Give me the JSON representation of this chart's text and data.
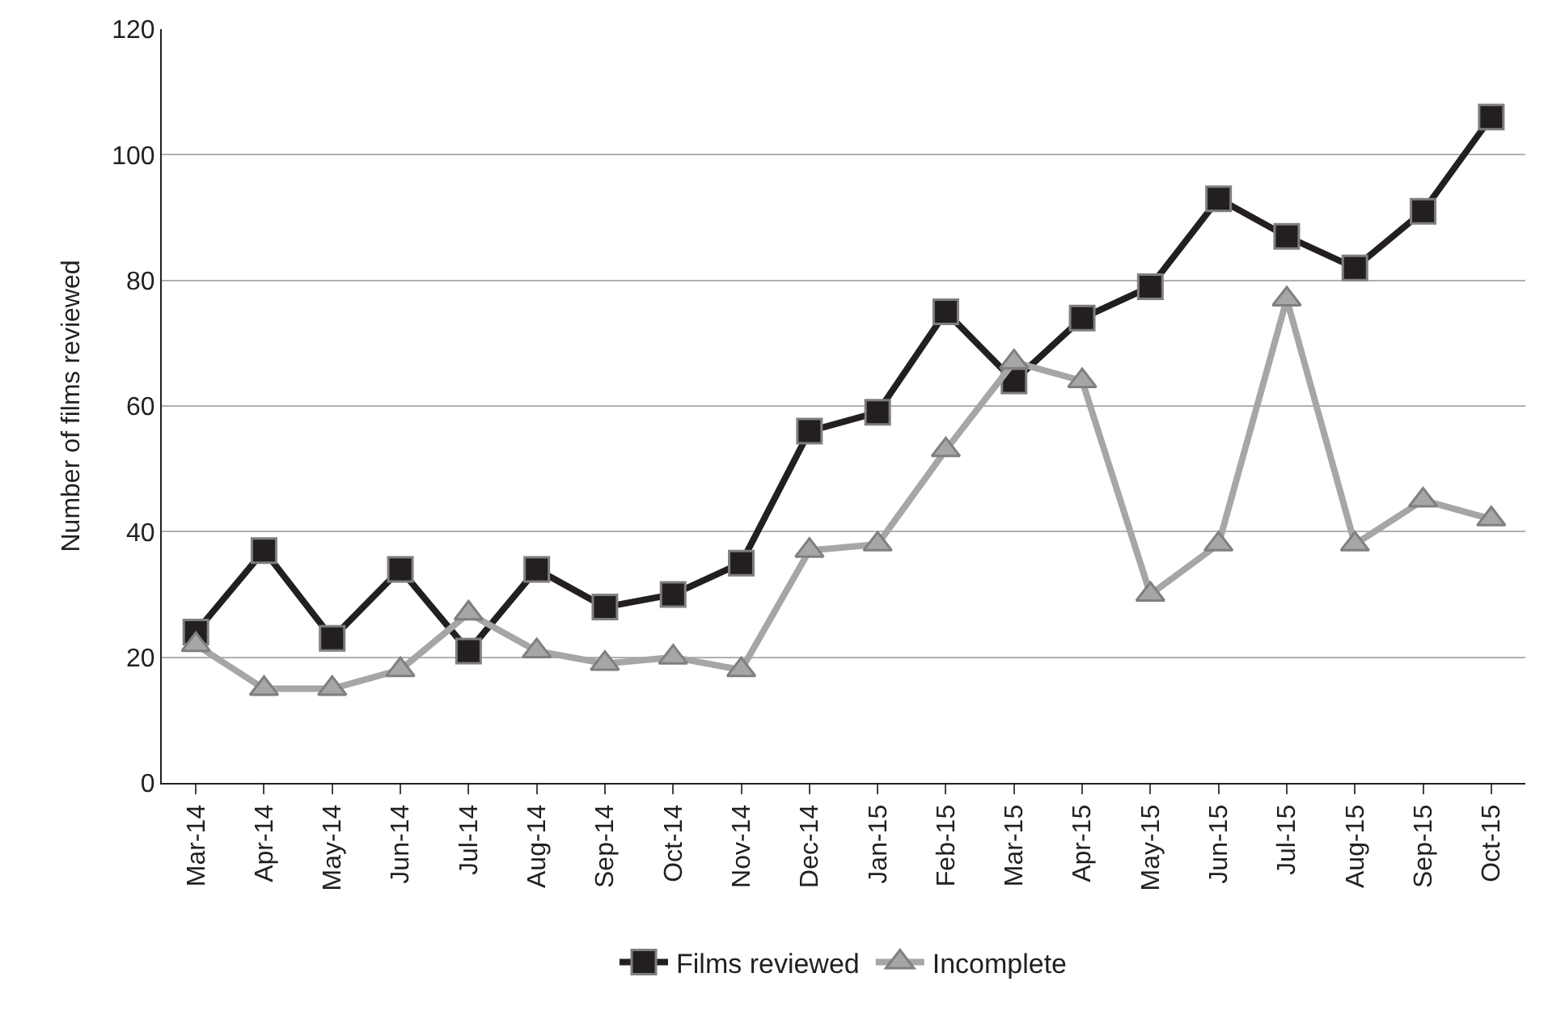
{
  "chart_data": {
    "type": "line",
    "ylabel": "Number of films reviewed",
    "categories": [
      "Mar-14",
      "Apr-14",
      "May-14",
      "Jun-14",
      "Jul-14",
      "Aug-14",
      "Sep-14",
      "Oct-14",
      "Nov-14",
      "Dec-14",
      "Jan-15",
      "Feb-15",
      "Mar-15",
      "Apr-15",
      "May-15",
      "Jun-15",
      "Jul-15",
      "Aug-15",
      "Sep-15",
      "Oct-15"
    ],
    "series": [
      {
        "name": "Films reviewed",
        "color": "#231f20",
        "marker": "square",
        "values": [
          24,
          37,
          23,
          34,
          21,
          34,
          28,
          30,
          35,
          56,
          59,
          75,
          64,
          74,
          79,
          93,
          87,
          82,
          91,
          106
        ]
      },
      {
        "name": "Incomplete",
        "color": "#a6a6a6",
        "marker": "triangle",
        "values": [
          22,
          15,
          15,
          18,
          27,
          21,
          19,
          20,
          18,
          37,
          38,
          53,
          67,
          64,
          30,
          38,
          77,
          38,
          45,
          42
        ]
      }
    ],
    "ylim": [
      0,
      120
    ],
    "yticks": [
      0,
      20,
      40,
      60,
      80,
      100,
      120
    ],
    "grid": "y",
    "legend": "bottom",
    "line_style": "solid"
  }
}
